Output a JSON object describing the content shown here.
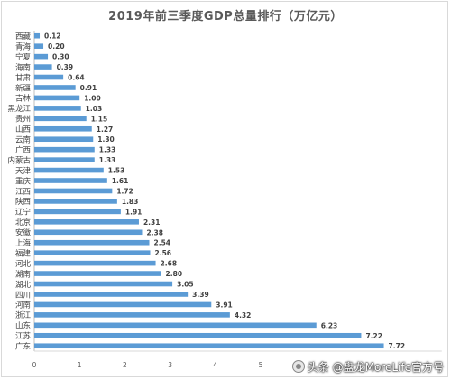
{
  "chart_data": {
    "type": "bar",
    "orientation": "horizontal",
    "title": "2019年前三季度GDP总量排行（万亿元）",
    "categories": [
      "西藏",
      "青海",
      "宁夏",
      "海南",
      "甘肃",
      "新疆",
      "吉林",
      "黑龙江",
      "贵州",
      "山西",
      "云南",
      "广西",
      "内蒙古",
      "天津",
      "重庆",
      "江西",
      "陕西",
      "辽宁",
      "北京",
      "安徽",
      "上海",
      "福建",
      "河北",
      "湖南",
      "湖北",
      "四川",
      "河南",
      "浙江",
      "山东",
      "江苏",
      "广东"
    ],
    "values": [
      0.12,
      0.2,
      0.3,
      0.39,
      0.64,
      0.91,
      1.0,
      1.03,
      1.15,
      1.27,
      1.3,
      1.33,
      1.33,
      1.53,
      1.61,
      1.72,
      1.83,
      1.91,
      2.31,
      2.38,
      2.54,
      2.56,
      2.68,
      2.8,
      3.05,
      3.39,
      3.91,
      4.32,
      6.23,
      7.22,
      7.72
    ],
    "value_labels": [
      "0.12",
      "0.20",
      "0.30",
      "0.39",
      "0.64",
      "0.91",
      "1.00",
      "1.03",
      "1.15",
      "1.27",
      "1.30",
      "1.33",
      "1.33",
      "1.53",
      "1.61",
      "1.72",
      "1.83",
      "1.91",
      "2.31",
      "2.38",
      "2.54",
      "2.56",
      "2.68",
      "2.80",
      "3.05",
      "3.39",
      "3.91",
      "4.32",
      "6.23",
      "7.22",
      "7.72"
    ],
    "x_ticks": [
      "0",
      "1",
      "2",
      "3",
      "4",
      "5"
    ],
    "xlim": [
      0,
      9
    ],
    "grid": false,
    "bar_color": "#5b9bd5"
  },
  "watermark": {
    "text": "头条 @盘龙MoreLife官方号",
    "icon": "avatar-icon"
  }
}
